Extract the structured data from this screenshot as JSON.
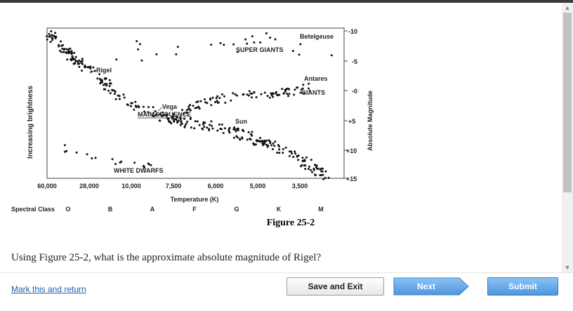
{
  "figure": {
    "y_left_label": "Increasing brightness",
    "y_right_label": "Absolute Magnitude",
    "mag_ticks": [
      "-10",
      "-5",
      "-0",
      "+5",
      "+10",
      "+15"
    ],
    "x_label": "Temperature (K)",
    "temp_ticks": [
      "60,000",
      "28,000",
      "10,000",
      "7,500",
      "6,000",
      "5,000",
      "3,500"
    ],
    "spectral_label": "Spectral Class",
    "spectral_classes": [
      "O",
      "B",
      "A",
      "F",
      "G",
      "K",
      "M"
    ],
    "regions": {
      "super_giants": "SUPER GIANTS",
      "giants": "GIANTS",
      "main_sequence": "MAIN SEQUENCE",
      "white_dwarfs": "WHITE DWARFS"
    },
    "stars": {
      "rigel": "Rigel",
      "vega": "Vega",
      "sun": "Sun",
      "antares": "Antares",
      "betelgeuse": "Betelgeuse"
    },
    "caption": "Figure 25-2"
  },
  "question": "Using Figure 25-2, what is the approximate absolute magnitude of Rigel?",
  "footer": {
    "mark_link": "Mark this and return",
    "save_exit": "Save and Exit",
    "next": "Next",
    "submit": "Submit"
  },
  "colors": {
    "link": "#1f5fa8",
    "next_bg": "#6aaef0",
    "submit_bg": "#5a9fe3"
  }
}
